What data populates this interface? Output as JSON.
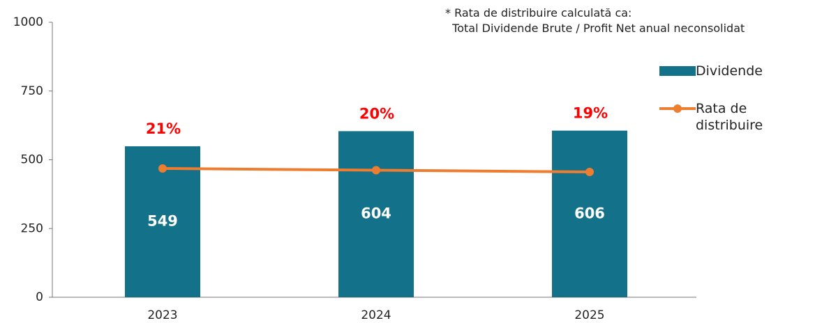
{
  "chart_data": {
    "type": "bar-line",
    "annotation": [
      "* Rata de distribuire calculată ca:",
      "  Total Dividende Brute / Profit Net anual neconsolidat"
    ],
    "categories": [
      "2023",
      "2024",
      "2025"
    ],
    "series": [
      {
        "name": "Dividende",
        "type": "bar",
        "color": "#14718a",
        "values": [
          549,
          604,
          606
        ]
      },
      {
        "name": "Rata de distribuire",
        "type": "line",
        "axis": "y2",
        "color": "#ed7d31",
        "values": [
          21,
          20,
          19
        ],
        "value_labels": [
          "21%",
          "20%",
          "19%"
        ],
        "label_color": "#ff0000"
      }
    ],
    "ylim": [
      0,
      1000
    ],
    "yticks": [
      0,
      250,
      500,
      750,
      1000
    ],
    "y2lim": [
      -53,
      105
    ],
    "legend": "right"
  }
}
